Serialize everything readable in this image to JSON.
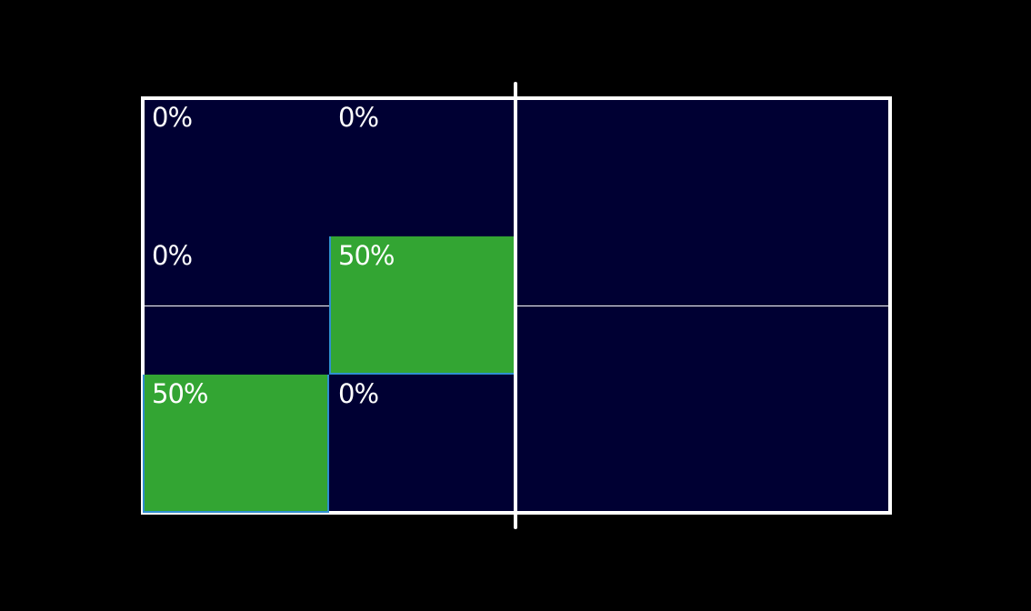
{
  "court": {
    "colors": {
      "background": "#000000",
      "court": "#000033",
      "lines": "#ffffff",
      "highlight": "#33a533",
      "highlight_edge": "#2f8fd0"
    }
  },
  "zones": [
    {
      "label": "0%",
      "value": 0
    },
    {
      "label": "0%",
      "value": 0
    },
    {
      "label": "0%",
      "value": 0
    },
    {
      "label": "50%",
      "value": 50
    },
    {
      "label": "50%",
      "value": 50
    },
    {
      "label": "0%",
      "value": 0
    }
  ]
}
